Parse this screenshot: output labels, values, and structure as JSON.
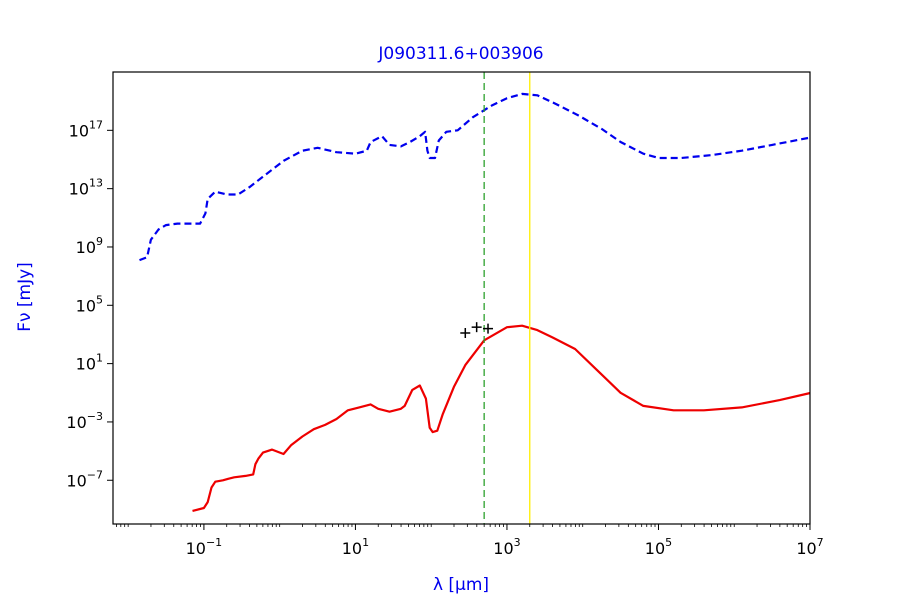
{
  "chart_data": {
    "type": "line",
    "title": "J090311.6+003906",
    "xlabel": "λ [μm]",
    "ylabel": "Fν [mJy]",
    "x_scale": "log",
    "y_scale": "log",
    "xlim_log10": [
      -2.2,
      7.0
    ],
    "ylim_log10": [
      -10.0,
      21.0
    ],
    "x_ticks": [
      {
        "log": -1,
        "base": "10",
        "exp": "−1"
      },
      {
        "log": 1,
        "base": "10",
        "exp": "1"
      },
      {
        "log": 3,
        "base": "10",
        "exp": "3"
      },
      {
        "log": 5,
        "base": "10",
        "exp": "5"
      },
      {
        "log": 7,
        "base": "10",
        "exp": "7"
      }
    ],
    "y_ticks": [
      {
        "log": -7,
        "base": "10",
        "exp": "−7"
      },
      {
        "log": -3,
        "base": "10",
        "exp": "−3"
      },
      {
        "log": 1,
        "base": "10",
        "exp": "1"
      },
      {
        "log": 5,
        "base": "10",
        "exp": "5"
      },
      {
        "log": 9,
        "base": "10",
        "exp": "9"
      },
      {
        "log": 13,
        "base": "10",
        "exp": "13"
      },
      {
        "log": 17,
        "base": "10",
        "exp": "17"
      }
    ],
    "vlines": [
      {
        "x": 500,
        "color": "#2ca02c",
        "style": "dashed"
      },
      {
        "x": 2000,
        "color": "#ffee00",
        "style": "solid"
      }
    ],
    "series": [
      {
        "color": "#0000ee",
        "style": "dashed",
        "points_log10": [
          [
            -1.85,
            8.1
          ],
          [
            -1.75,
            8.3
          ],
          [
            -1.7,
            9.5
          ],
          [
            -1.6,
            10.2
          ],
          [
            -1.5,
            10.5
          ],
          [
            -1.35,
            10.6
          ],
          [
            -1.05,
            10.6
          ],
          [
            -0.98,
            11.3
          ],
          [
            -0.95,
            12.3
          ],
          [
            -0.85,
            12.8
          ],
          [
            -0.7,
            12.6
          ],
          [
            -0.55,
            12.6
          ],
          [
            -0.4,
            13.1
          ],
          [
            -0.2,
            13.9
          ],
          [
            0.05,
            14.9
          ],
          [
            0.3,
            15.6
          ],
          [
            0.5,
            15.8
          ],
          [
            0.75,
            15.5
          ],
          [
            1.0,
            15.4
          ],
          [
            1.15,
            15.6
          ],
          [
            1.2,
            16.2
          ],
          [
            1.35,
            16.6
          ],
          [
            1.45,
            16.0
          ],
          [
            1.6,
            15.9
          ],
          [
            1.72,
            16.2
          ],
          [
            1.85,
            16.6
          ],
          [
            1.92,
            16.9
          ],
          [
            1.95,
            15.6
          ],
          [
            1.98,
            15.1
          ],
          [
            2.05,
            15.1
          ],
          [
            2.1,
            16.3
          ],
          [
            2.2,
            16.9
          ],
          [
            2.35,
            17.0
          ],
          [
            2.55,
            17.9
          ],
          [
            2.8,
            18.7
          ],
          [
            3.0,
            19.2
          ],
          [
            3.2,
            19.5
          ],
          [
            3.4,
            19.4
          ],
          [
            3.65,
            18.8
          ],
          [
            3.95,
            18.0
          ],
          [
            4.25,
            17.1
          ],
          [
            4.5,
            16.2
          ],
          [
            4.8,
            15.4
          ],
          [
            5.0,
            15.1
          ],
          [
            5.3,
            15.1
          ],
          [
            5.7,
            15.3
          ],
          [
            6.1,
            15.6
          ],
          [
            6.5,
            16.0
          ],
          [
            6.9,
            16.4
          ],
          [
            7.3,
            16.8
          ],
          [
            7.55,
            17.1
          ]
        ]
      },
      {
        "color": "#ee0000",
        "style": "solid",
        "points_log10": [
          [
            -1.15,
            -9.1
          ],
          [
            -1.0,
            -8.9
          ],
          [
            -0.95,
            -8.5
          ],
          [
            -0.9,
            -7.5
          ],
          [
            -0.85,
            -7.1
          ],
          [
            -0.75,
            -7.0
          ],
          [
            -0.68,
            -6.9
          ],
          [
            -0.6,
            -6.8
          ],
          [
            -0.45,
            -6.7
          ],
          [
            -0.35,
            -6.6
          ],
          [
            -0.32,
            -5.9
          ],
          [
            -0.28,
            -5.5
          ],
          [
            -0.22,
            -5.1
          ],
          [
            -0.1,
            -4.9
          ],
          [
            0.05,
            -5.2
          ],
          [
            0.15,
            -4.6
          ],
          [
            0.3,
            -4.0
          ],
          [
            0.45,
            -3.5
          ],
          [
            0.6,
            -3.2
          ],
          [
            0.75,
            -2.8
          ],
          [
            0.9,
            -2.2
          ],
          [
            1.05,
            -2.0
          ],
          [
            1.2,
            -1.8
          ],
          [
            1.3,
            -2.1
          ],
          [
            1.45,
            -2.3
          ],
          [
            1.6,
            -2.1
          ],
          [
            1.65,
            -1.9
          ],
          [
            1.75,
            -0.8
          ],
          [
            1.85,
            -0.5
          ],
          [
            1.93,
            -1.4
          ],
          [
            1.98,
            -3.4
          ],
          [
            2.02,
            -3.7
          ],
          [
            2.08,
            -3.6
          ],
          [
            2.15,
            -2.5
          ],
          [
            2.3,
            -0.6
          ],
          [
            2.45,
            0.9
          ],
          [
            2.7,
            2.6
          ],
          [
            3.0,
            3.5
          ],
          [
            3.2,
            3.6
          ],
          [
            3.4,
            3.3
          ],
          [
            3.6,
            2.8
          ],
          [
            3.9,
            2.0
          ],
          [
            4.2,
            0.5
          ],
          [
            4.5,
            -1.0
          ],
          [
            4.8,
            -1.9
          ],
          [
            5.2,
            -2.2
          ],
          [
            5.6,
            -2.2
          ],
          [
            6.1,
            -2.0
          ],
          [
            6.6,
            -1.5
          ],
          [
            7.1,
            -0.9
          ],
          [
            7.6,
            -0.2
          ],
          [
            8.0,
            0.4
          ]
        ]
      }
    ],
    "markers": {
      "symbol": "+",
      "color": "#000000",
      "points_log10": [
        [
          2.45,
          3.1
        ],
        [
          2.6,
          3.5
        ],
        [
          2.75,
          3.4
        ]
      ]
    }
  }
}
